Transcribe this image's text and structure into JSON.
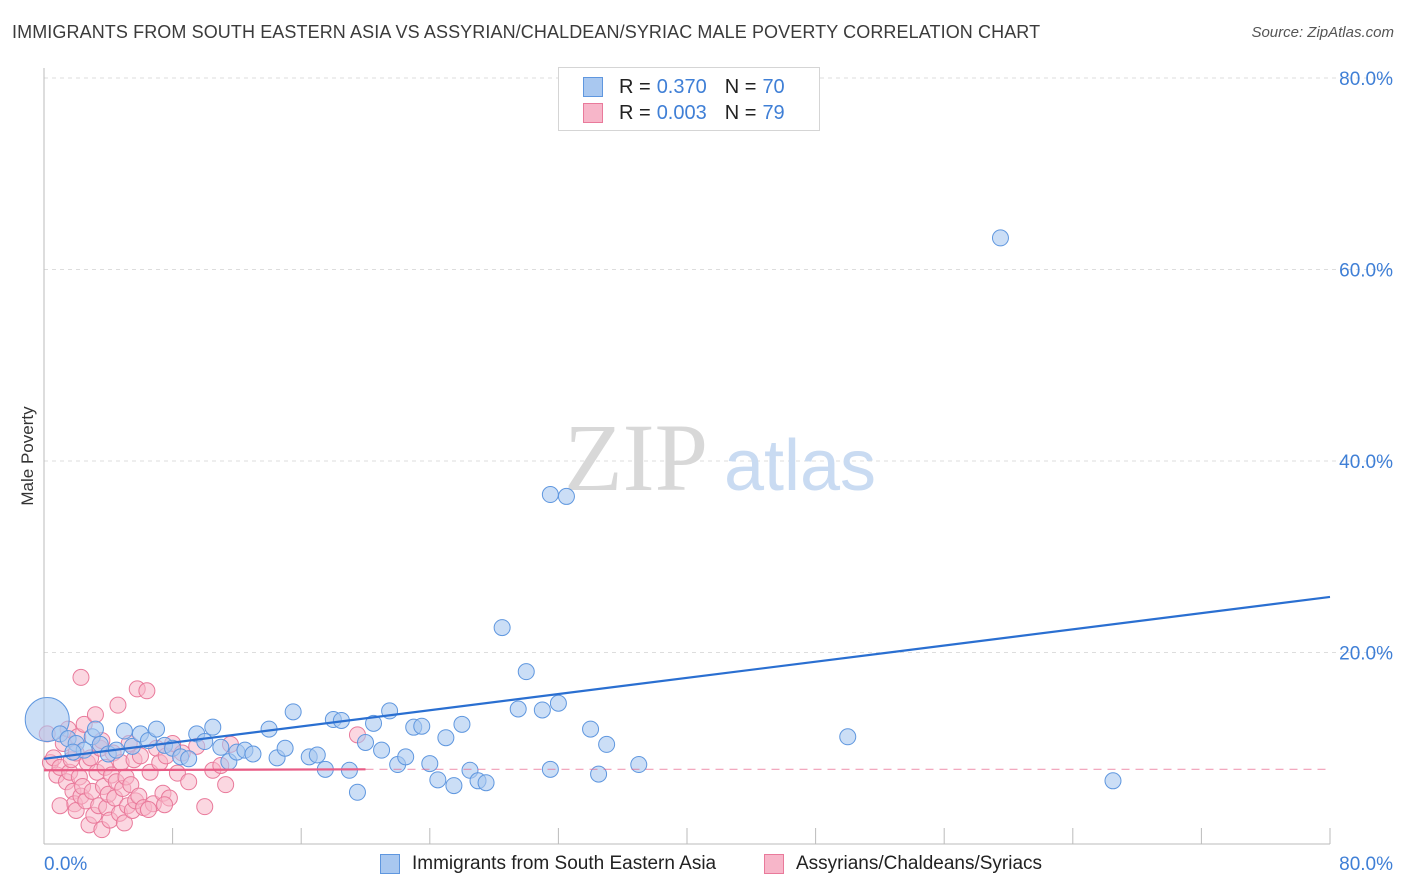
{
  "title": "IMMIGRANTS FROM SOUTH EASTERN ASIA VS ASSYRIAN/CHALDEAN/SYRIAC MALE POVERTY CORRELATION CHART",
  "source": "Source: ZipAtlas.com",
  "watermark": {
    "zip": "ZIP",
    "atlas": "atlas"
  },
  "legend": {
    "rows": [
      {
        "r_label": "R =",
        "r_value": "0.370",
        "n_label": "N =",
        "n_value": "70"
      },
      {
        "r_label": "R =",
        "r_value": "0.003",
        "n_label": "N =",
        "n_value": "79"
      }
    ]
  },
  "colors": {
    "blue_fill": "#a9c8f0",
    "blue_stroke": "#5f97df",
    "blue_line": "#2a6fd1",
    "pink_fill": "#f7b6c9",
    "pink_stroke": "#e97a9b",
    "pink_line": "#e85b85",
    "axis_label": "#3f7fd6",
    "grid": "#dddddd"
  },
  "chart_data": {
    "type": "scatter",
    "title": "IMMIGRANTS FROM SOUTH EASTERN ASIA VS ASSYRIAN/CHALDEAN/SYRIAC MALE POVERTY CORRELATION CHART",
    "xlabel": "",
    "ylabel": "Male Poverty",
    "xlim": [
      0,
      80
    ],
    "ylim": [
      0,
      80
    ],
    "x_tick_labels": [
      "0.0%",
      "80.0%"
    ],
    "y_tick_labels": [
      "20.0%",
      "40.0%",
      "60.0%",
      "80.0%"
    ],
    "y_ticks": [
      20,
      40,
      60,
      80
    ],
    "x_grid_ticks": [
      8,
      16,
      24,
      32,
      40,
      48,
      56,
      64,
      72,
      80
    ],
    "series": [
      {
        "name": "Immigrants from South Eastern Asia",
        "R": 0.37,
        "N": 70,
        "trend": {
          "x0": 0,
          "y0": 8.9,
          "x1": 80,
          "y1": 25.8,
          "dashed_extension": false
        },
        "points": [
          [
            0.2,
            13.0
          ],
          [
            1.0,
            11.5
          ],
          [
            1.5,
            11.0
          ],
          [
            2.0,
            10.5
          ],
          [
            2.5,
            9.8
          ],
          [
            3.0,
            11.2
          ],
          [
            3.5,
            10.4
          ],
          [
            4.0,
            9.4
          ],
          [
            4.5,
            9.8
          ],
          [
            5.0,
            11.8
          ],
          [
            5.5,
            10.2
          ],
          [
            6.0,
            11.5
          ],
          [
            6.5,
            10.8
          ],
          [
            7.0,
            12.0
          ],
          [
            7.5,
            10.3
          ],
          [
            8.0,
            10.0
          ],
          [
            8.5,
            9.1
          ],
          [
            9.0,
            8.9
          ],
          [
            9.5,
            11.5
          ],
          [
            10.0,
            10.7
          ],
          [
            10.5,
            12.2
          ],
          [
            11.0,
            10.1
          ],
          [
            11.5,
            8.6
          ],
          [
            12.0,
            9.6
          ],
          [
            12.5,
            9.8
          ],
          [
            13.0,
            9.4
          ],
          [
            14.0,
            12.0
          ],
          [
            14.5,
            9.0
          ],
          [
            15.0,
            10.0
          ],
          [
            15.5,
            13.8
          ],
          [
            16.5,
            9.1
          ],
          [
            17.0,
            9.3
          ],
          [
            17.5,
            7.8
          ],
          [
            18.0,
            13.0
          ],
          [
            18.5,
            12.9
          ],
          [
            19.0,
            7.7
          ],
          [
            19.5,
            5.4
          ],
          [
            20.0,
            10.6
          ],
          [
            20.5,
            12.6
          ],
          [
            21.0,
            9.8
          ],
          [
            21.5,
            13.9
          ],
          [
            22.0,
            8.3
          ],
          [
            22.5,
            9.1
          ],
          [
            23.0,
            12.2
          ],
          [
            23.5,
            12.3
          ],
          [
            24.0,
            8.4
          ],
          [
            24.5,
            6.7
          ],
          [
            25.0,
            11.1
          ],
          [
            25.5,
            6.1
          ],
          [
            26.0,
            12.5
          ],
          [
            26.5,
            7.7
          ],
          [
            27.0,
            6.6
          ],
          [
            27.5,
            6.4
          ],
          [
            28.5,
            22.6
          ],
          [
            29.5,
            14.1
          ],
          [
            30.0,
            18.0
          ],
          [
            31.0,
            14.0
          ],
          [
            31.5,
            36.5
          ],
          [
            32.0,
            14.7
          ],
          [
            32.5,
            36.3
          ],
          [
            31.5,
            7.8
          ],
          [
            34.0,
            12.0
          ],
          [
            34.5,
            7.3
          ],
          [
            35.0,
            10.4
          ],
          [
            37.0,
            8.3
          ],
          [
            50.0,
            11.2
          ],
          [
            59.5,
            63.3
          ],
          [
            66.5,
            6.6
          ],
          [
            3.2,
            12.0
          ],
          [
            1.8,
            9.6
          ]
        ]
      },
      {
        "name": "Assyrians/Chaldeans/Syriacs",
        "R": 0.003,
        "N": 79,
        "trend": {
          "x0": 0,
          "y0": 7.7,
          "x1": 20,
          "y1": 7.8,
          "dashed_extension": true,
          "dash_to_x": 80
        },
        "points": [
          [
            0.2,
            11.5
          ],
          [
            0.4,
            8.5
          ],
          [
            0.6,
            9.0
          ],
          [
            0.8,
            7.2
          ],
          [
            1.0,
            8.0
          ],
          [
            1.2,
            10.5
          ],
          [
            1.4,
            6.5
          ],
          [
            1.5,
            12.0
          ],
          [
            1.6,
            7.5
          ],
          [
            1.7,
            8.8
          ],
          [
            1.8,
            5.5
          ],
          [
            1.9,
            4.2
          ],
          [
            2.0,
            9.5
          ],
          [
            2.0,
            3.5
          ],
          [
            2.1,
            11.2
          ],
          [
            2.2,
            7.0
          ],
          [
            2.3,
            5.0
          ],
          [
            2.4,
            6.0
          ],
          [
            2.5,
            12.5
          ],
          [
            2.6,
            4.5
          ],
          [
            2.7,
            8.5
          ],
          [
            2.8,
            2.0
          ],
          [
            2.9,
            9.0
          ],
          [
            3.0,
            5.5
          ],
          [
            3.1,
            3.0
          ],
          [
            3.2,
            13.5
          ],
          [
            3.3,
            7.5
          ],
          [
            3.4,
            4.0
          ],
          [
            3.5,
            10.0
          ],
          [
            3.6,
            1.5
          ],
          [
            3.7,
            6.0
          ],
          [
            3.8,
            8.0
          ],
          [
            3.9,
            3.8
          ],
          [
            4.0,
            5.2
          ],
          [
            4.1,
            2.5
          ],
          [
            4.2,
            7.2
          ],
          [
            4.3,
            9.5
          ],
          [
            4.4,
            4.8
          ],
          [
            4.5,
            6.5
          ],
          [
            4.6,
            14.5
          ],
          [
            4.7,
            3.2
          ],
          [
            4.8,
            8.5
          ],
          [
            4.9,
            5.8
          ],
          [
            5.0,
            2.2
          ],
          [
            5.1,
            7.0
          ],
          [
            5.2,
            4.0
          ],
          [
            5.3,
            10.5
          ],
          [
            5.4,
            6.2
          ],
          [
            5.5,
            3.5
          ],
          [
            5.6,
            8.8
          ],
          [
            5.7,
            4.5
          ],
          [
            5.8,
            16.2
          ],
          [
            5.9,
            5.0
          ],
          [
            6.0,
            9.2
          ],
          [
            6.2,
            3.8
          ],
          [
            6.4,
            16.0
          ],
          [
            6.6,
            7.5
          ],
          [
            6.8,
            4.2
          ],
          [
            7.0,
            10.0
          ],
          [
            7.2,
            8.5
          ],
          [
            7.4,
            5.3
          ],
          [
            7.6,
            9.2
          ],
          [
            7.8,
            4.8
          ],
          [
            8.0,
            10.5
          ],
          [
            8.3,
            7.4
          ],
          [
            8.6,
            9.5
          ],
          [
            9.0,
            6.5
          ],
          [
            9.5,
            10.2
          ],
          [
            10.0,
            3.9
          ],
          [
            10.5,
            7.7
          ],
          [
            11.0,
            8.2
          ],
          [
            11.3,
            6.2
          ],
          [
            11.6,
            10.4
          ],
          [
            2.3,
            17.4
          ],
          [
            19.5,
            11.4
          ],
          [
            1.0,
            4.0
          ],
          [
            3.6,
            10.8
          ],
          [
            6.5,
            3.6
          ],
          [
            7.5,
            4.1
          ]
        ]
      }
    ]
  },
  "bottom_legend": {
    "series1": "Immigrants from South Eastern Asia",
    "series2": "Assyrians/Chaldeans/Syriacs"
  }
}
